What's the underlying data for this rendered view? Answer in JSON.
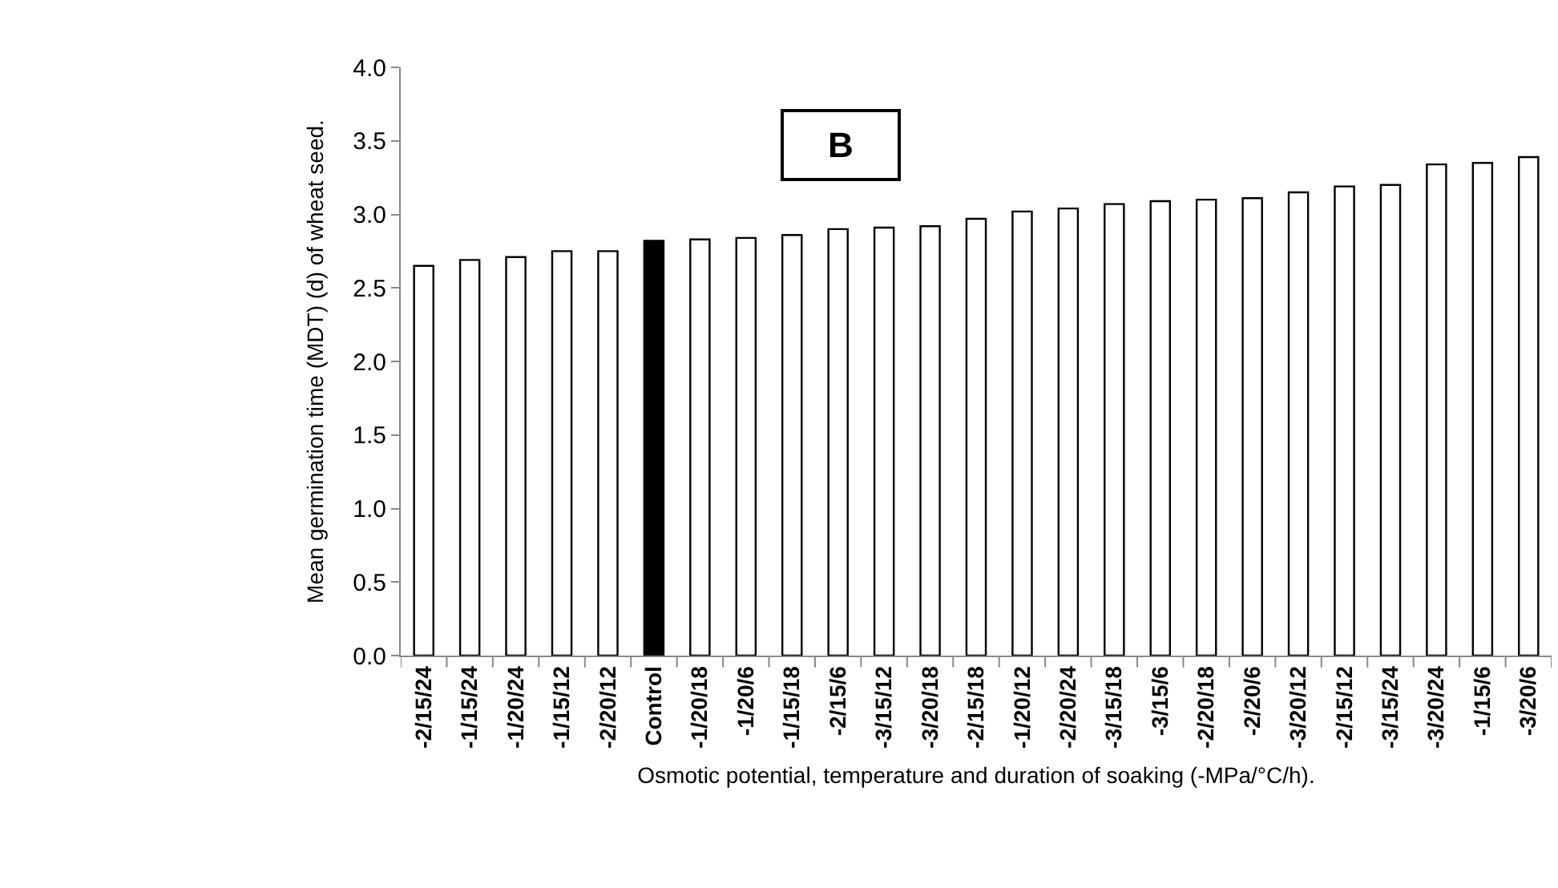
{
  "chart_data": {
    "type": "bar",
    "xlabel": "Osmotic potential, temperature and duration of soaking (-MPa/°C/h).",
    "ylabel": "Mean germination time (MDT) (d) of wheat seed.",
    "annotations": [
      "B"
    ],
    "categories": [
      "-2/15/24",
      "-1/15/24",
      "-1/20/24",
      "-1/15/12",
      "-2/20/12",
      "Control",
      "-1/20/18",
      "-1/20/6",
      "-1/15/18",
      "-2/15/6",
      "-3/15/12",
      "-3/20/18",
      "-2/15/18",
      "-1/20/12",
      "-2/20/24",
      "-3/15/18",
      "-3/15/6",
      "-2/20/18",
      "-2/20/6",
      "-3/20/12",
      "-2/15/12",
      "-3/15/24",
      "-3/20/24",
      "-1/15/6",
      "-3/20/6"
    ],
    "values": [
      2.65,
      2.69,
      2.71,
      2.75,
      2.75,
      2.82,
      2.83,
      2.84,
      2.86,
      2.9,
      2.91,
      2.92,
      2.97,
      3.02,
      3.04,
      3.07,
      3.09,
      3.1,
      3.11,
      3.15,
      3.19,
      3.2,
      3.34,
      3.35,
      3.39
    ],
    "colors": [
      "#ffffff",
      "#ffffff",
      "#ffffff",
      "#ffffff",
      "#ffffff",
      "#000000",
      "#ffffff",
      "#ffffff",
      "#ffffff",
      "#ffffff",
      "#ffffff",
      "#ffffff",
      "#ffffff",
      "#ffffff",
      "#ffffff",
      "#ffffff",
      "#ffffff",
      "#ffffff",
      "#ffffff",
      "#ffffff",
      "#ffffff",
      "#ffffff",
      "#ffffff",
      "#ffffff",
      "#ffffff"
    ],
    "ylim": [
      0,
      4
    ],
    "yticks": [
      {
        "value": 0,
        "label": "0.0"
      },
      {
        "value": 0.5,
        "label": "0.5"
      },
      {
        "value": 1,
        "label": "1.0"
      },
      {
        "value": 1.5,
        "label": "1.5"
      },
      {
        "value": 2,
        "label": "2.0"
      },
      {
        "value": 2.5,
        "label": "2.5"
      },
      {
        "value": 3,
        "label": "3.0"
      },
      {
        "value": 3.5,
        "label": "3.5"
      },
      {
        "value": 4,
        "label": "4.0"
      }
    ]
  }
}
